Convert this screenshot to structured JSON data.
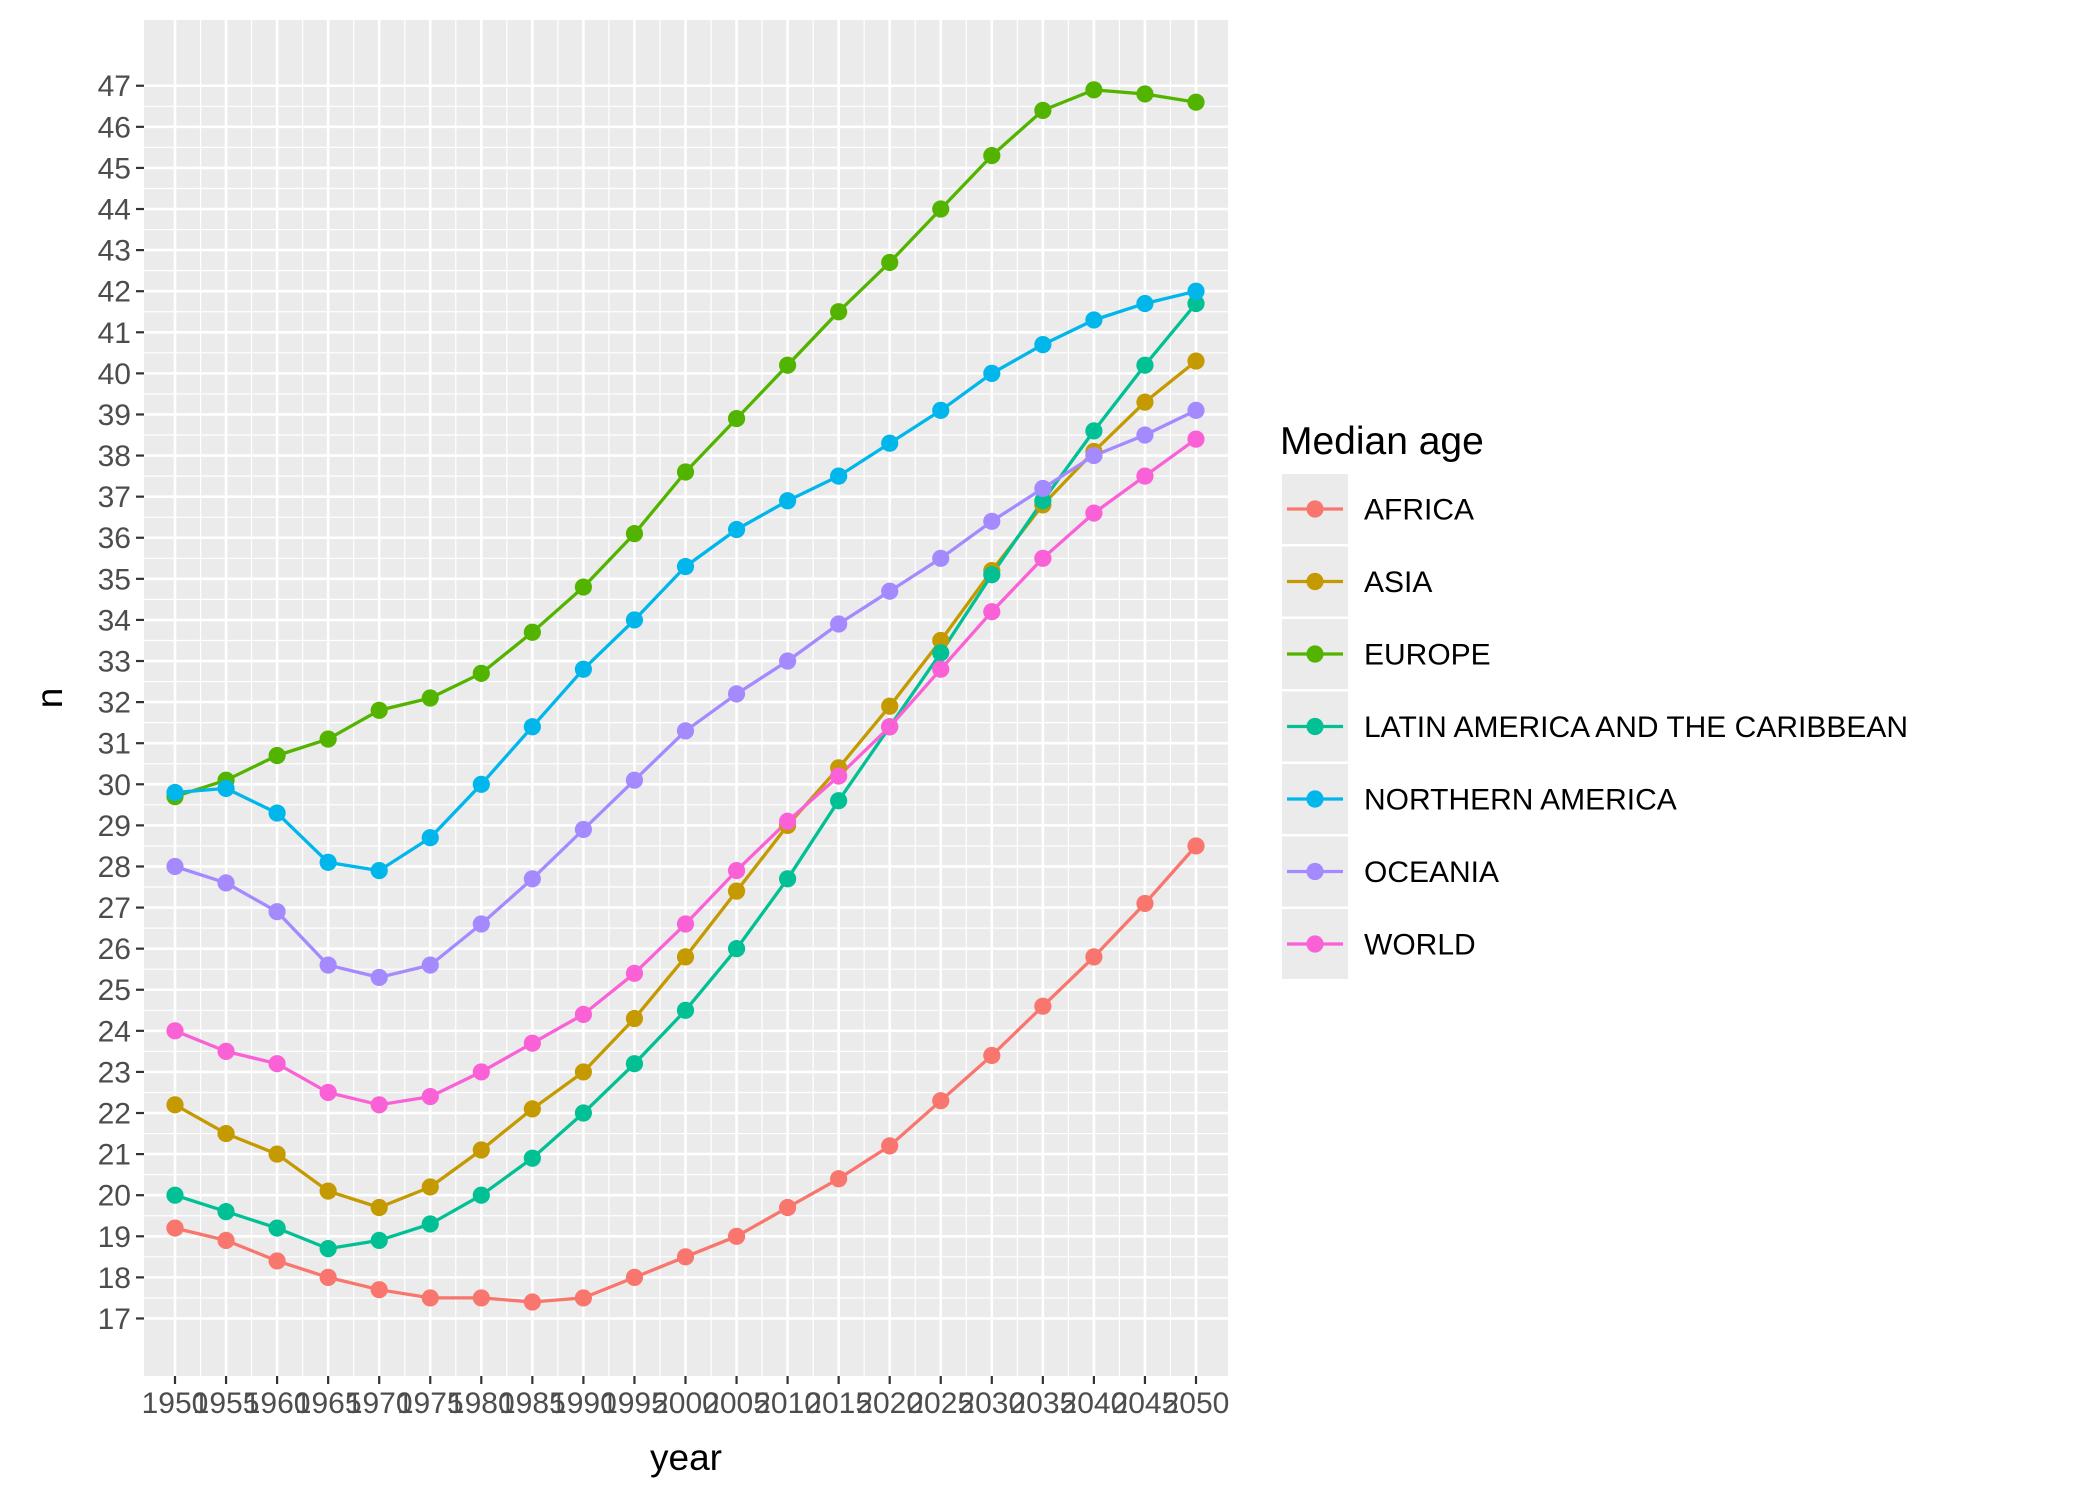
{
  "chart_data": {
    "type": "line",
    "title": "",
    "xlabel": "year",
    "ylabel": "n",
    "legend_title": "Median age",
    "legend_position": "right",
    "grid": true,
    "x": [
      1950,
      1955,
      1960,
      1965,
      1970,
      1975,
      1980,
      1985,
      1990,
      1995,
      2000,
      2005,
      2010,
      2015,
      2020,
      2025,
      2030,
      2035,
      2040,
      2045,
      2050
    ],
    "x_tick_labels": [
      "1950",
      "1955",
      "1960",
      "1965",
      "1970",
      "1975",
      "1980",
      "1985",
      "1990",
      "1995",
      "2000",
      "2005",
      "2010",
      "2015",
      "2020",
      "2025",
      "2030",
      "2035",
      "2040",
      "2045",
      "2050"
    ],
    "y_ticks": [
      17,
      18,
      19,
      20,
      21,
      22,
      23,
      24,
      25,
      26,
      27,
      28,
      29,
      30,
      31,
      32,
      33,
      34,
      35,
      36,
      37,
      38,
      39,
      40,
      41,
      42,
      43,
      44,
      45,
      46,
      47
    ],
    "y_tick_labels": [
      "17",
      "18",
      "19",
      "20",
      "21",
      "22",
      "23",
      "24",
      "25",
      "26",
      "27",
      "28",
      "29",
      "30",
      "31",
      "32",
      "33",
      "34",
      "35",
      "36",
      "37",
      "38",
      "39",
      "40",
      "41",
      "42",
      "43",
      "44",
      "45",
      "46",
      "47"
    ],
    "ylim": [
      15.6,
      48.6
    ],
    "series": [
      {
        "name": "AFRICA",
        "color": "#F8766D",
        "values": [
          19.2,
          18.9,
          18.4,
          18.0,
          17.7,
          17.5,
          17.5,
          17.4,
          17.5,
          18.0,
          18.5,
          19.0,
          19.7,
          20.4,
          21.2,
          22.3,
          23.4,
          24.6,
          25.8,
          27.1,
          28.5
        ]
      },
      {
        "name": "ASIA",
        "color": "#C49A00",
        "values": [
          22.2,
          21.5,
          21.0,
          20.1,
          19.7,
          20.2,
          21.1,
          22.1,
          23.0,
          24.3,
          25.8,
          27.4,
          29.0,
          30.4,
          31.9,
          33.5,
          35.2,
          36.8,
          38.1,
          39.3,
          40.3
        ]
      },
      {
        "name": "EUROPE",
        "color": "#53B400",
        "values": [
          29.7,
          30.1,
          30.7,
          31.1,
          31.8,
          32.1,
          32.7,
          33.7,
          34.8,
          36.1,
          37.6,
          38.9,
          40.2,
          41.5,
          42.7,
          44.0,
          45.3,
          46.4,
          46.9,
          46.8,
          46.6
        ]
      },
      {
        "name": "LATIN AMERICA AND THE CARIBBEAN",
        "color": "#00C094",
        "values": [
          20.0,
          19.6,
          19.2,
          18.7,
          18.9,
          19.3,
          20.0,
          20.9,
          22.0,
          23.2,
          24.5,
          26.0,
          27.7,
          29.6,
          31.4,
          33.2,
          35.1,
          36.9,
          38.6,
          40.2,
          41.7
        ]
      },
      {
        "name": "NORTHERN AMERICA",
        "color": "#00B6EB",
        "values": [
          29.8,
          29.9,
          29.3,
          28.1,
          27.9,
          28.7,
          30.0,
          31.4,
          32.8,
          34.0,
          35.3,
          36.2,
          36.9,
          37.5,
          38.3,
          39.1,
          40.0,
          40.7,
          41.3,
          41.7,
          42.0
        ]
      },
      {
        "name": "OCEANIA",
        "color": "#A58AFF",
        "values": [
          28.0,
          27.6,
          26.9,
          25.6,
          25.3,
          25.6,
          26.6,
          27.7,
          28.9,
          30.1,
          31.3,
          32.2,
          33.0,
          33.9,
          34.7,
          35.5,
          36.4,
          37.2,
          38.0,
          38.5,
          39.1
        ]
      },
      {
        "name": "WORLD",
        "color": "#FB61D7",
        "values": [
          24.0,
          23.5,
          23.2,
          22.5,
          22.2,
          22.4,
          23.0,
          23.7,
          24.4,
          25.4,
          26.6,
          27.9,
          29.1,
          30.2,
          31.4,
          32.8,
          34.2,
          35.5,
          36.6,
          37.5,
          38.4
        ]
      }
    ]
  },
  "colors": {
    "panel_background": "#EBEBEB",
    "grid_major": "#FFFFFF"
  }
}
